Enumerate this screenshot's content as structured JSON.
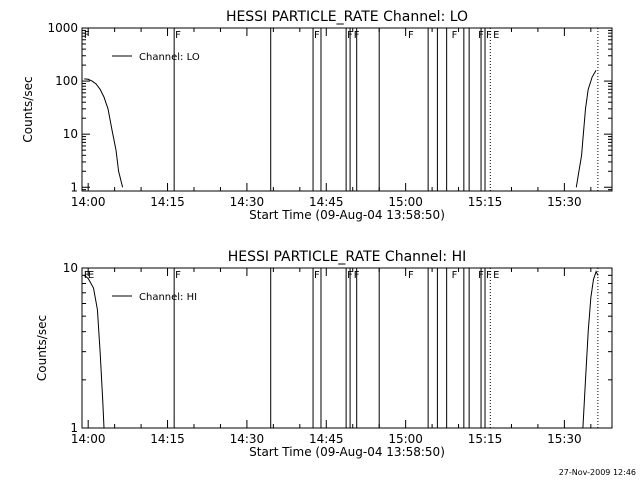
{
  "footer_timestamp": "27-Nov-2009 12:46",
  "chart_data": [
    {
      "type": "line",
      "title": "HESSI PARTICLE_RATE Channel: LO",
      "xlabel": "Start Time (09-Aug-04 13:58:50)",
      "ylabel": "Counts/sec",
      "y_scale": "log",
      "xlim": [
        "13:58:50",
        "15:39:00"
      ],
      "ylim": [
        0.85,
        1000
      ],
      "x_ticks": [
        "14:00",
        "14:15",
        "14:30",
        "14:45",
        "15:00",
        "15:15",
        "15:30"
      ],
      "y_ticks": [
        "1",
        "10",
        "100",
        "1000"
      ],
      "legend": {
        "placement": "top-left",
        "entries": [
          "Channel: LO"
        ]
      },
      "series": [
        {
          "name": "Channel: LO",
          "segments": [
            [
              [
                "13:59:15",
                110
              ],
              [
                "14:00:00",
                108
              ],
              [
                "14:00:45",
                100
              ],
              [
                "14:01:30",
                88
              ],
              [
                "14:02:15",
                70
              ],
              [
                "14:03:00",
                50
              ],
              [
                "14:03:45",
                30
              ],
              [
                "14:04:30",
                12
              ],
              [
                "14:05:15",
                5
              ],
              [
                "14:05:45",
                2
              ],
              [
                "14:06:30",
                1
              ]
            ],
            [
              [
                "15:32:15",
                1
              ],
              [
                "15:32:45",
                2
              ],
              [
                "15:33:15",
                4
              ],
              [
                "15:33:30",
                8
              ],
              [
                "15:34:00",
                30
              ],
              [
                "15:34:30",
                70
              ],
              [
                "15:35:15",
                120
              ],
              [
                "15:36:00",
                160
              ]
            ]
          ]
        }
      ],
      "markers": {
        "solid": [
          "14:16:15",
          "14:34:30",
          "14:42:30",
          "14:44:00",
          "14:48:45",
          "14:49:30",
          "14:50:45",
          "14:55:00",
          "15:04:15",
          "15:06:00",
          "15:07:45",
          "15:11:00",
          "15:12:00",
          "15:14:15",
          "15:15:00"
        ],
        "dotted": [
          "15:16:00",
          "15:36:20"
        ],
        "flags": [
          {
            "time": "13:59:00",
            "text": "F"
          },
          {
            "time": "14:16:15",
            "text": "F"
          },
          {
            "time": "14:42:30",
            "text": "F"
          },
          {
            "time": "14:48:45",
            "text": "F"
          },
          {
            "time": "14:50:00",
            "text": "F"
          },
          {
            "time": "15:00:15",
            "text": "F"
          },
          {
            "time": "15:08:30",
            "text": "F"
          },
          {
            "time": "15:13:30",
            "text": "F"
          },
          {
            "time": "15:15:00",
            "text": "F"
          },
          {
            "time": "15:16:20",
            "text": "E"
          }
        ]
      }
    },
    {
      "type": "line",
      "title": "HESSI PARTICLE_RATE Channel: HI",
      "xlabel": "Start Time (09-Aug-04 13:58:50)",
      "ylabel": "Counts/sec",
      "y_scale": "log",
      "xlim": [
        "13:58:50",
        "15:39:00"
      ],
      "ylim": [
        1,
        10
      ],
      "x_ticks": [
        "14:00",
        "14:15",
        "14:30",
        "14:45",
        "15:00",
        "15:15",
        "15:30"
      ],
      "y_ticks": [
        "1",
        "10"
      ],
      "legend": {
        "placement": "top-left",
        "entries": [
          "Channel: HI"
        ]
      },
      "series": [
        {
          "name": "Channel: HI",
          "segments": [
            [
              [
                "13:59:15",
                9
              ],
              [
                "14:00:00",
                8.6
              ],
              [
                "14:01:00",
                7.5
              ],
              [
                "14:01:45",
                5.5
              ],
              [
                "14:02:15",
                3
              ],
              [
                "14:02:45",
                1.5
              ],
              [
                "14:03:00",
                1
              ]
            ],
            [
              [
                "15:33:30",
                1
              ],
              [
                "15:34:00",
                2
              ],
              [
                "15:34:30",
                4
              ],
              [
                "15:35:00",
                6.5
              ],
              [
                "15:35:30",
                8.5
              ],
              [
                "15:36:00",
                9.5
              ],
              [
                "15:36:20",
                9
              ]
            ]
          ]
        }
      ],
      "markers": {
        "solid": [
          "14:16:15",
          "14:34:30",
          "14:42:30",
          "14:44:00",
          "14:48:45",
          "14:49:30",
          "14:50:45",
          "14:55:00",
          "15:04:15",
          "15:06:00",
          "15:07:45",
          "15:11:00",
          "15:12:00",
          "15:14:15",
          "15:15:00"
        ],
        "dotted": [
          "15:16:00",
          "15:36:20"
        ],
        "flags": [
          {
            "time": "13:59:00",
            "text": "F"
          },
          {
            "time": "13:59:45",
            "text": "E"
          },
          {
            "time": "14:16:15",
            "text": "F"
          },
          {
            "time": "14:42:30",
            "text": "F"
          },
          {
            "time": "14:48:45",
            "text": "F"
          },
          {
            "time": "14:50:00",
            "text": "F"
          },
          {
            "time": "15:00:15",
            "text": "F"
          },
          {
            "time": "15:08:30",
            "text": "F"
          },
          {
            "time": "15:13:30",
            "text": "F"
          },
          {
            "time": "15:15:00",
            "text": "F"
          },
          {
            "time": "15:16:20",
            "text": "E"
          }
        ]
      }
    }
  ]
}
